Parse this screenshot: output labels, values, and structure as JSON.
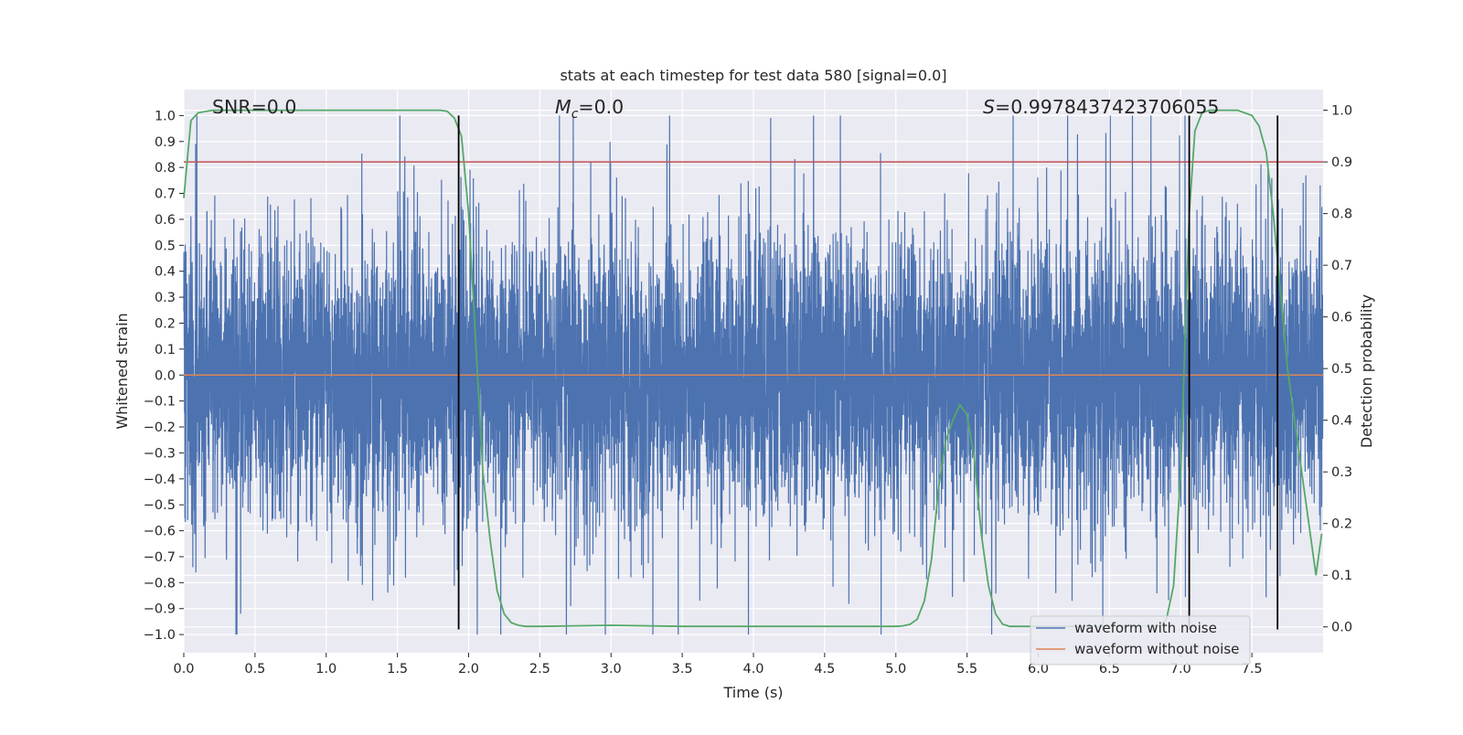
{
  "chart_data": {
    "type": "line",
    "title": "stats at each timestep for test data 580 [signal=0.0]",
    "xlabel": "Time (s)",
    "ylabel": "Whitened strain",
    "y2label": "Detection probability",
    "xlim": [
      0.0,
      8.0
    ],
    "ylim": [
      -1.07,
      1.1
    ],
    "y2lim": [
      -0.05,
      1.04
    ],
    "grid": true,
    "x_ticks": [
      0.0,
      0.5,
      1.0,
      1.5,
      2.0,
      2.5,
      3.0,
      3.5,
      4.0,
      4.5,
      5.0,
      5.5,
      6.0,
      6.5,
      7.0,
      7.5
    ],
    "x_tick_labels": [
      "0.0",
      "0.5",
      "1.0",
      "1.5",
      "2.0",
      "2.5",
      "3.0",
      "3.5",
      "4.0",
      "4.5",
      "5.0",
      "5.5",
      "6.0",
      "6.5",
      "7.0",
      "7.5"
    ],
    "y_ticks": [
      -1.0,
      -0.9,
      -0.8,
      -0.7,
      -0.6,
      -0.5,
      -0.4,
      -0.3,
      -0.2,
      -0.1,
      0.0,
      0.1,
      0.2,
      0.3,
      0.4,
      0.5,
      0.6,
      0.7,
      0.8,
      0.9,
      1.0
    ],
    "y_tick_labels": [
      "−1.0",
      "−0.9",
      "−0.8",
      "−0.7",
      "−0.6",
      "−0.5",
      "−0.4",
      "−0.3",
      "−0.2",
      "−0.1",
      "0.0",
      "0.1",
      "0.2",
      "0.3",
      "0.4",
      "0.5",
      "0.6",
      "0.7",
      "0.8",
      "0.9",
      "1.0"
    ],
    "y2_ticks": [
      0.0,
      0.1,
      0.2,
      0.3,
      0.4,
      0.5,
      0.6,
      0.7,
      0.8,
      0.9,
      1.0
    ],
    "y2_tick_labels": [
      "0.0",
      "0.1",
      "0.2",
      "0.3",
      "0.4",
      "0.5",
      "0.6",
      "0.7",
      "0.8",
      "0.9",
      "1.0"
    ],
    "annotations": {
      "snr": "SNR=0.0",
      "mc_symbol": "M",
      "mc_subscript": "c",
      "mc_value": "=0.0",
      "s_symbol": "S",
      "s_value": "=0.9978437423706055"
    },
    "series": [
      {
        "name": "waveform with noise",
        "color": "#4c72b0",
        "kind": "noise",
        "sample_rate": 1024,
        "envelope_range": [
          -1.0,
          1.0
        ]
      },
      {
        "name": "waveform without noise",
        "color": "#dd8452",
        "kind": "flat",
        "value": 0.0
      },
      {
        "name": "detection probability",
        "color": "#55a868",
        "axis": "right",
        "x": [
          0.0,
          0.05,
          0.1,
          0.2,
          0.5,
          1.0,
          1.5,
          1.8,
          1.85,
          1.9,
          1.95,
          2.0,
          2.05,
          2.1,
          2.15,
          2.2,
          2.25,
          2.3,
          2.35,
          2.4,
          2.5,
          3.0,
          3.5,
          4.0,
          4.5,
          5.0,
          5.05,
          5.1,
          5.15,
          5.2,
          5.25,
          5.3,
          5.35,
          5.4,
          5.45,
          5.5,
          5.55,
          5.6,
          5.65,
          5.7,
          5.75,
          5.8,
          6.0,
          6.5,
          6.85,
          6.9,
          6.95,
          7.0,
          7.03,
          7.06,
          7.1,
          7.15,
          7.2,
          7.3,
          7.4,
          7.5,
          7.55,
          7.6,
          7.65,
          7.7,
          7.75,
          7.8,
          7.85,
          7.9,
          7.95,
          7.99
        ],
        "y": [
          0.83,
          0.98,
          0.995,
          1.0,
          1.0,
          1.0,
          1.0,
          1.0,
          0.998,
          0.985,
          0.95,
          0.8,
          0.55,
          0.3,
          0.17,
          0.07,
          0.025,
          0.008,
          0.003,
          0.001,
          0.001,
          0.003,
          0.001,
          0.001,
          0.001,
          0.001,
          0.002,
          0.005,
          0.015,
          0.05,
          0.13,
          0.27,
          0.36,
          0.4,
          0.43,
          0.41,
          0.33,
          0.18,
          0.08,
          0.025,
          0.005,
          0.001,
          0.001,
          0.001,
          0.002,
          0.015,
          0.08,
          0.3,
          0.55,
          0.8,
          0.96,
          0.995,
          1.0,
          1.0,
          1.0,
          0.99,
          0.97,
          0.92,
          0.8,
          0.65,
          0.5,
          0.4,
          0.3,
          0.2,
          0.1,
          0.18
        ]
      },
      {
        "name": "threshold",
        "color": "#c44e52",
        "kind": "hline",
        "value": 0.9,
        "axis": "right"
      }
    ],
    "vertical_markers": [
      1.93,
      7.06,
      7.68
    ],
    "vertical_marker_range": [
      -0.98,
      1.0
    ],
    "legend": {
      "placement": "lower-right",
      "entries": [
        {
          "label": "waveform with noise",
          "color": "#4c72b0"
        },
        {
          "label": "waveform without noise",
          "color": "#dd8452"
        }
      ]
    }
  }
}
